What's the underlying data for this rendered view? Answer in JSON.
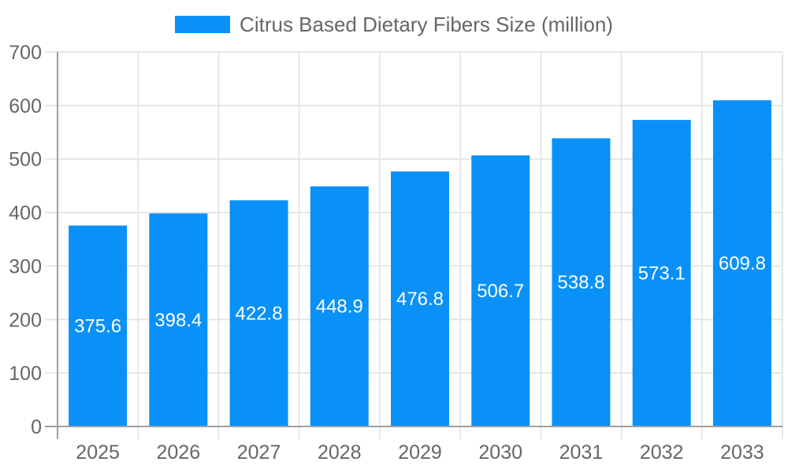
{
  "legend": {
    "label": "Citrus Based Dietary Fibers Size (million)",
    "swatch_color": "#0a91f8",
    "text_color": "#666666"
  },
  "chart_data": {
    "type": "bar",
    "title": "Citrus Based Dietary Fibers Size (million)",
    "series": [
      {
        "name": "Citrus Based Dietary Fibers Size (million)",
        "values": [
          375.6,
          398.4,
          422.8,
          448.9,
          476.8,
          506.7,
          538.8,
          573.1,
          609.8
        ]
      }
    ],
    "categories": [
      "2025",
      "2026",
      "2027",
      "2028",
      "2029",
      "2030",
      "2031",
      "2032",
      "2033"
    ],
    "value_labels": [
      "375.6",
      "398.4",
      "422.8",
      "448.9",
      "476.8",
      "506.7",
      "538.8",
      "573.1",
      "609.8"
    ],
    "xlabel": "",
    "ylabel": "",
    "ylim": [
      0,
      700
    ],
    "yticks": [
      0,
      100,
      200,
      300,
      400,
      500,
      600,
      700
    ],
    "grid": true,
    "legend_position": "top-center",
    "colors": {
      "bar": "#0a91f8",
      "value_label": "#ffffff",
      "grid": "#e6e6e6",
      "axis": "#9e9e9e",
      "tick_label": "#666666"
    }
  }
}
